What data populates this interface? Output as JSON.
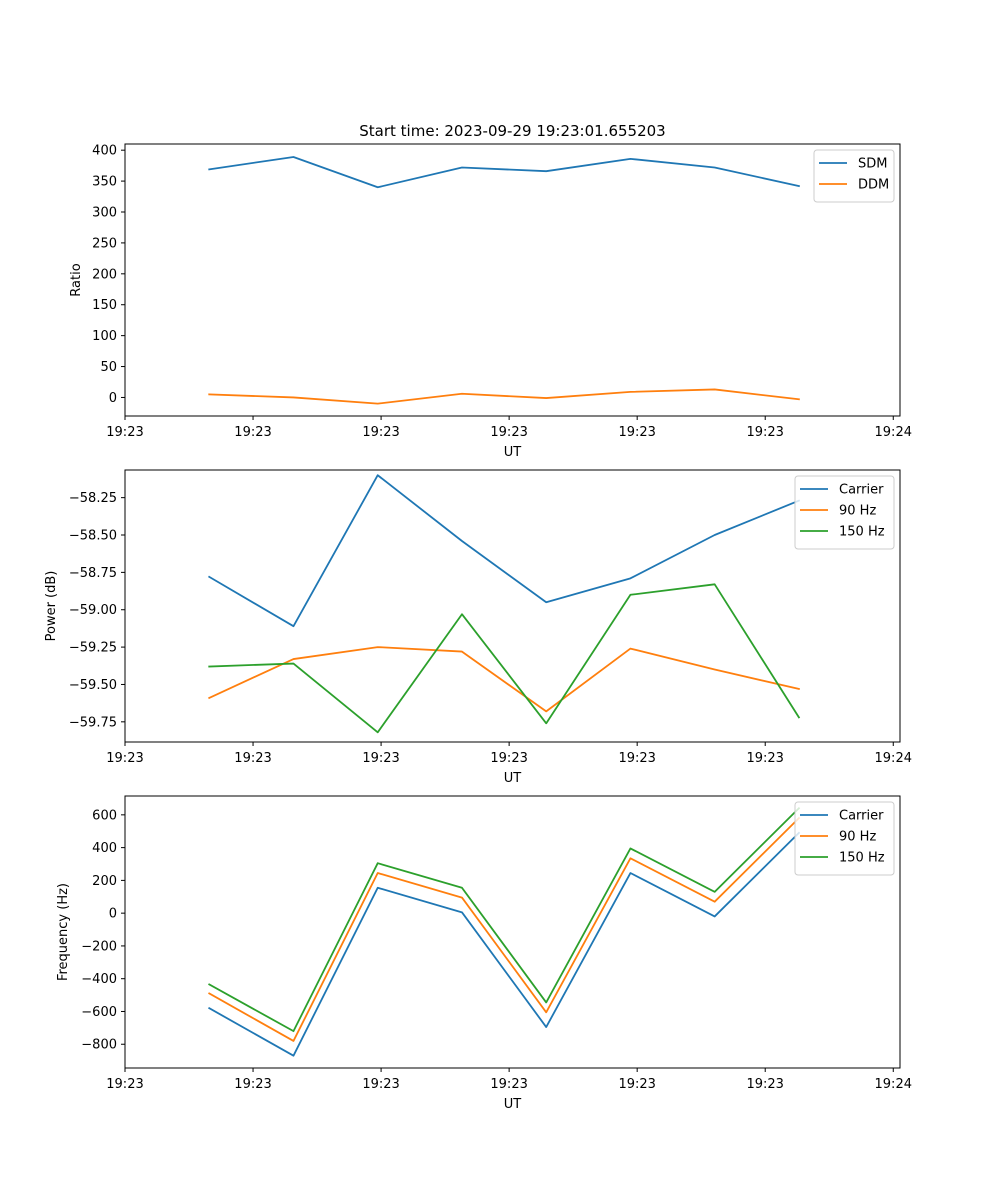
{
  "figure": {
    "title": "Start time: 2023-09-29 19:23:01.655203"
  },
  "colors": {
    "blue": "#1f77b4",
    "orange": "#ff7f0e",
    "green": "#2ca02c"
  },
  "chart_data": [
    {
      "type": "line",
      "title": "Start time: 2023-09-29 19:23:01.655203",
      "xlabel": "UT",
      "ylabel": "Ratio",
      "x": [
        1,
        2,
        3,
        4,
        5,
        6,
        7,
        8
      ],
      "xlim": [
        0,
        9.2
      ],
      "xticks": [
        {
          "value": 0,
          "label": "19:23"
        },
        {
          "value": 1.52,
          "label": "19:23"
        },
        {
          "value": 3.04,
          "label": "19:23"
        },
        {
          "value": 4.56,
          "label": "19:23"
        },
        {
          "value": 6.08,
          "label": "19:23"
        },
        {
          "value": 7.6,
          "label": "19:23"
        },
        {
          "value": 9.12,
          "label": "19:24"
        }
      ],
      "ylim": [
        -30,
        410
      ],
      "yticks": [
        0,
        50,
        100,
        150,
        200,
        250,
        300,
        350,
        400
      ],
      "yticklabels": [
        "0",
        "50",
        "100",
        "150",
        "200",
        "250",
        "300",
        "350",
        "400"
      ],
      "legend_position": "top-right",
      "series": [
        {
          "name": "SDM",
          "color": "#1f77b4",
          "values": [
            369,
            389,
            340,
            372,
            366,
            386,
            372,
            342
          ]
        },
        {
          "name": "DDM",
          "color": "#ff7f0e",
          "values": [
            5,
            0,
            -10,
            6,
            -1,
            9,
            13,
            -3
          ]
        }
      ]
    },
    {
      "type": "line",
      "xlabel": "UT",
      "ylabel": "Power (dB)",
      "x": [
        1,
        2,
        3,
        4,
        5,
        6,
        7,
        8
      ],
      "xlim": [
        0,
        9.2
      ],
      "xticks": [
        {
          "value": 0,
          "label": "19:23"
        },
        {
          "value": 1.52,
          "label": "19:23"
        },
        {
          "value": 3.04,
          "label": "19:23"
        },
        {
          "value": 4.56,
          "label": "19:23"
        },
        {
          "value": 6.08,
          "label": "19:23"
        },
        {
          "value": 7.6,
          "label": "19:23"
        },
        {
          "value": 9.12,
          "label": "19:24"
        }
      ],
      "ylim": [
        -59.885,
        -58.065
      ],
      "yticks": [
        -59.75,
        -59.5,
        -59.25,
        -59.0,
        -58.75,
        -58.5,
        -58.25
      ],
      "yticklabels": [
        "−59.75",
        "−59.50",
        "−59.25",
        "−59.00",
        "−58.75",
        "−58.50",
        "−58.25"
      ],
      "legend_position": "top-right",
      "series": [
        {
          "name": "Carrier",
          "color": "#1f77b4",
          "values": [
            -58.78,
            -59.11,
            -58.1,
            -58.54,
            -58.95,
            -58.79,
            -58.5,
            -58.27
          ]
        },
        {
          "name": "90 Hz",
          "color": "#ff7f0e",
          "values": [
            -59.59,
            -59.33,
            -59.25,
            -59.28,
            -59.68,
            -59.26,
            -59.4,
            -59.53
          ]
        },
        {
          "name": "150 Hz",
          "color": "#2ca02c",
          "values": [
            -59.38,
            -59.36,
            -59.82,
            -59.03,
            -59.76,
            -58.9,
            -58.83,
            -59.72
          ]
        }
      ]
    },
    {
      "type": "line",
      "xlabel": "UT",
      "ylabel": "Frequency (Hz)",
      "x": [
        1,
        2,
        3,
        4,
        5,
        6,
        7,
        8
      ],
      "xlim": [
        0,
        9.2
      ],
      "xticks": [
        {
          "value": 0,
          "label": "19:23"
        },
        {
          "value": 1.52,
          "label": "19:23"
        },
        {
          "value": 3.04,
          "label": "19:23"
        },
        {
          "value": 4.56,
          "label": "19:23"
        },
        {
          "value": 6.08,
          "label": "19:23"
        },
        {
          "value": 7.6,
          "label": "19:23"
        },
        {
          "value": 9.12,
          "label": "19:24"
        }
      ],
      "ylim": [
        -945,
        715
      ],
      "yticks": [
        -800,
        -600,
        -400,
        -200,
        0,
        200,
        400,
        600
      ],
      "yticklabels": [
        "−800",
        "−600",
        "−400",
        "−200",
        "0",
        "200",
        "400",
        "600"
      ],
      "legend_position": "top-right",
      "series": [
        {
          "name": "Carrier",
          "color": "#1f77b4",
          "values": [
            -580,
            -870,
            155,
            5,
            -695,
            245,
            -20,
            490
          ]
        },
        {
          "name": "90 Hz",
          "color": "#ff7f0e",
          "values": [
            -490,
            -780,
            245,
            95,
            -605,
            335,
            70,
            580
          ]
        },
        {
          "name": "150 Hz",
          "color": "#2ca02c",
          "values": [
            -435,
            -720,
            305,
            155,
            -545,
            395,
            130,
            640
          ]
        }
      ]
    }
  ]
}
